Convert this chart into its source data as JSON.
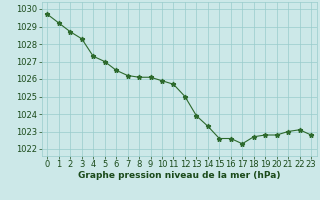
{
  "x": [
    0,
    1,
    2,
    3,
    4,
    5,
    6,
    7,
    8,
    9,
    10,
    11,
    12,
    13,
    14,
    15,
    16,
    17,
    18,
    19,
    20,
    21,
    22,
    23
  ],
  "y": [
    1029.7,
    1029.2,
    1028.7,
    1028.3,
    1027.3,
    1027.0,
    1026.5,
    1026.2,
    1026.1,
    1026.1,
    1025.9,
    1025.7,
    1025.0,
    1023.9,
    1023.3,
    1022.6,
    1022.6,
    1022.3,
    1022.7,
    1022.8,
    1022.8,
    1023.0,
    1023.1,
    1022.8
  ],
  "line_color": "#2d6a2d",
  "marker": "*",
  "marker_size": 3.5,
  "bg_color": "#cce8e8",
  "grid_color": "#99cccc",
  "xlabel": "Graphe pression niveau de la mer (hPa)",
  "xlabel_color": "#1a4a1a",
  "xlabel_fontsize": 6.5,
  "tick_color": "#1a4a1a",
  "tick_fontsize": 6.0,
  "ylim": [
    1021.6,
    1030.4
  ],
  "yticks": [
    1022,
    1023,
    1024,
    1025,
    1026,
    1027,
    1028,
    1029,
    1030
  ],
  "xlim": [
    -0.5,
    23.5
  ],
  "xticks": [
    0,
    1,
    2,
    3,
    4,
    5,
    6,
    7,
    8,
    9,
    10,
    11,
    12,
    13,
    14,
    15,
    16,
    17,
    18,
    19,
    20,
    21,
    22,
    23
  ]
}
